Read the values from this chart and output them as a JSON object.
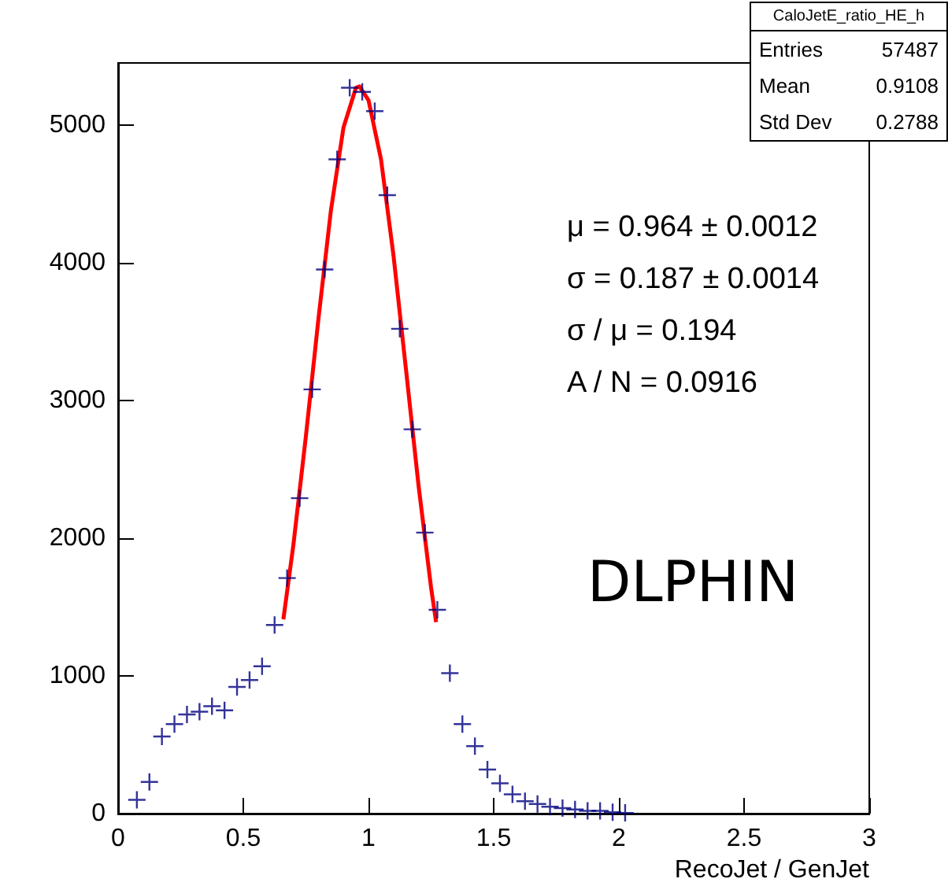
{
  "chart_data": {
    "type": "scatter",
    "xlabel": "RecoJet / GenJet",
    "x": [
      0.075,
      0.125,
      0.175,
      0.225,
      0.275,
      0.325,
      0.375,
      0.425,
      0.475,
      0.525,
      0.575,
      0.625,
      0.675,
      0.725,
      0.775,
      0.825,
      0.875,
      0.925,
      0.975,
      1.025,
      1.075,
      1.125,
      1.175,
      1.225,
      1.275,
      1.325,
      1.375,
      1.425,
      1.475,
      1.525,
      1.575,
      1.625,
      1.675,
      1.725,
      1.775,
      1.825,
      1.875,
      1.925,
      1.975,
      2.025
    ],
    "series": [
      {
        "color": "#000080",
        "marker": "cross",
        "values": [
          100,
          230,
          560,
          650,
          720,
          740,
          780,
          750,
          920,
          970,
          1070,
          1370,
          1710,
          2290,
          3080,
          3950,
          4750,
          5270,
          5240,
          5100,
          4490,
          3520,
          2790,
          2040,
          1480,
          1020,
          650,
          490,
          320,
          220,
          140,
          90,
          70,
          50,
          40,
          30,
          20,
          20,
          10,
          5
        ]
      },
      {
        "type": "line",
        "color": "#ff0000",
        "x": [
          0.66,
          0.7,
          0.75,
          0.8,
          0.85,
          0.9,
          0.95,
          0.964,
          1.0,
          1.05,
          1.1,
          1.15,
          1.2,
          1.25,
          1.27
        ],
        "values": [
          1410,
          1950,
          2740,
          3590,
          4380,
          4980,
          5270,
          5280,
          5180,
          4750,
          4050,
          3220,
          2380,
          1640,
          1390
        ]
      }
    ],
    "xlim": [
      0,
      3
    ],
    "xticks": [
      0,
      0.5,
      1,
      1.5,
      2,
      2.5,
      3
    ],
    "ylim": [
      0,
      5450
    ],
    "yticks": [
      0,
      1000,
      2000,
      3000,
      4000,
      5000
    ],
    "grid": false,
    "annotations": [
      "CaloJetE_ratio_HE_h",
      "Entries",
      "57487",
      "Mean",
      "0.9108",
      "Std Dev",
      "0.2788",
      "μ = 0.964 ± 0.0012",
      "σ = 0.187 ± 0.0014",
      "σ / μ = 0.194",
      "A / N = 0.0916",
      "DLPHIN"
    ]
  }
}
